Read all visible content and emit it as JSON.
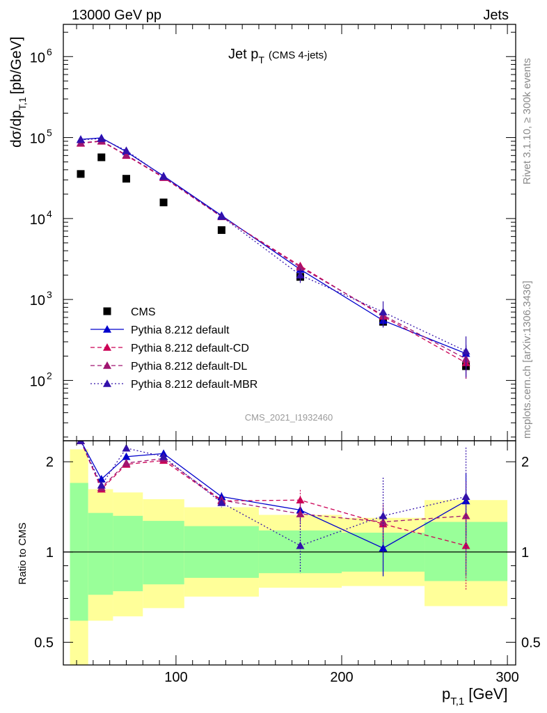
{
  "header": {
    "left": "13000 GeV pp",
    "right": "Jets"
  },
  "side_text": {
    "rivet": "Rivet 3.1.10, ≥ 300k events",
    "mcplots": "mcplots.cern.ch [arXiv:1306.3436]"
  },
  "chart_data": [
    {
      "type": "scatter",
      "panel": "main",
      "title_main": "Jet p",
      "title_sub": "T",
      "title_note": "(CMS 4-jets)",
      "watermark": "CMS_2021_I1932460",
      "yscale": "log",
      "xlim": [
        32,
        305
      ],
      "ylim": [
        18,
        2500000
      ],
      "ylabel_main": "dσ/dp",
      "ylabel_sub": "T,1",
      "ylabel_unit": "[pb/GeV]",
      "ytick_labels": [
        {
          "value": 100,
          "base": "10",
          "exp": "2"
        },
        {
          "value": 1000,
          "base": "10",
          "exp": "3"
        },
        {
          "value": 10000,
          "base": "10",
          "exp": "4"
        },
        {
          "value": 100000,
          "base": "10",
          "exp": "5"
        },
        {
          "value": 1000000,
          "base": "10",
          "exp": "6"
        }
      ],
      "legend_position": "bottom-left",
      "x": [
        42.5,
        55,
        70,
        92.5,
        127.5,
        175,
        225,
        275
      ],
      "series": [
        {
          "name": "CMS",
          "color": "#000000",
          "marker": "square",
          "line": "none",
          "values": [
            35500,
            57000,
            31000,
            15800,
            7200,
            1900,
            530,
            150
          ],
          "errors": [
            0,
            0,
            0,
            0,
            0,
            0,
            0,
            0
          ]
        },
        {
          "name": "Pythia 8.212 default",
          "color": "#0000cc",
          "marker": "triangle",
          "line": "solid",
          "values": [
            95000,
            99000,
            67000,
            33500,
            10900,
            2350,
            550,
            215
          ],
          "errors": [
            0,
            0,
            0,
            0,
            0,
            250,
            90,
            60
          ]
        },
        {
          "name": "Pythia 8.212 default-CD",
          "color": "#cc0055",
          "marker": "triangle",
          "line": "dashed",
          "values": [
            85000,
            90000,
            60000,
            32000,
            10500,
            2600,
            620,
            165
          ],
          "errors": [
            0,
            0,
            0,
            0,
            0,
            250,
            80,
            60
          ]
        },
        {
          "name": "Pythia 8.212 default-DL",
          "color": "#a01570",
          "marker": "triangle",
          "line": "dashed",
          "values": [
            86000,
            91000,
            61000,
            32500,
            10600,
            2500,
            640,
            185
          ],
          "errors": [
            0,
            0,
            0,
            0,
            0,
            250,
            100,
            80
          ]
        },
        {
          "name": "Pythia 8.212 default-MBR",
          "color": "#3311aa",
          "marker": "triangle",
          "line": "dotted",
          "values": [
            94000,
            97000,
            69000,
            33000,
            10600,
            2000,
            700,
            230
          ],
          "errors": [
            0,
            0,
            0,
            0,
            0,
            400,
            250,
            120
          ]
        }
      ]
    },
    {
      "type": "line",
      "panel": "ratio",
      "yscale": "log",
      "xlim": [
        32,
        305
      ],
      "ylim": [
        0.42,
        2.35
      ],
      "ylabel": "Ratio to CMS",
      "xlabel_main": "p",
      "xlabel_sub": "T,1",
      "xlabel_unit": "[GeV]",
      "x_tick_labels": [
        {
          "value": 100,
          "label": "100"
        },
        {
          "value": 200,
          "label": "200"
        },
        {
          "value": 300,
          "label": "300"
        }
      ],
      "y_tick_labels": [
        {
          "value": 0.5,
          "label": "0.5"
        },
        {
          "value": 1,
          "label": "1"
        },
        {
          "value": 2,
          "label": "2"
        }
      ],
      "bands": [
        {
          "x0": 36,
          "x1": 47,
          "green": [
            0.59,
            1.7
          ],
          "yellow": [
            0.42,
            2.2
          ]
        },
        {
          "x0": 47,
          "x1": 62,
          "green": [
            0.72,
            1.35
          ],
          "yellow": [
            0.59,
            1.62
          ]
        },
        {
          "x0": 62,
          "x1": 80,
          "green": [
            0.74,
            1.32
          ],
          "yellow": [
            0.61,
            1.58
          ]
        },
        {
          "x0": 80,
          "x1": 105,
          "green": [
            0.78,
            1.27
          ],
          "yellow": [
            0.65,
            1.5
          ]
        },
        {
          "x0": 105,
          "x1": 150,
          "green": [
            0.82,
            1.22
          ],
          "yellow": [
            0.71,
            1.41
          ]
        },
        {
          "x0": 150,
          "x1": 200,
          "green": [
            0.85,
            1.18
          ],
          "yellow": [
            0.76,
            1.33
          ]
        },
        {
          "x0": 200,
          "x1": 250,
          "green": [
            0.86,
            1.16
          ],
          "yellow": [
            0.77,
            1.3
          ]
        },
        {
          "x0": 250,
          "x1": 300,
          "green": [
            0.8,
            1.26
          ],
          "yellow": [
            0.66,
            1.49
          ]
        }
      ],
      "x": [
        42.5,
        55,
        70,
        92.5,
        127.5,
        175,
        225,
        275
      ],
      "series": [
        {
          "name": "Pythia 8.212 default",
          "color": "#0000cc",
          "line": "solid",
          "values": [
            2.35,
            1.75,
            2.08,
            2.13,
            1.53,
            1.38,
            1.03,
            1.48
          ],
          "errors": [
            0,
            0.05,
            0,
            0.04,
            0.05,
            0.12,
            0.2,
            0.35
          ]
        },
        {
          "name": "Pythia 8.212 default-CD",
          "color": "#cc0055",
          "line": "dashed",
          "values": [
            2.35,
            1.62,
            1.96,
            2.02,
            1.48,
            1.49,
            1.24,
            1.05
          ],
          "errors": [
            0,
            0.05,
            0,
            0.04,
            0.05,
            0.12,
            0.15,
            0.3
          ]
        },
        {
          "name": "Pythia 8.212 default-DL",
          "color": "#a01570",
          "line": "dashed",
          "values": [
            2.35,
            1.64,
            1.98,
            2.05,
            1.49,
            1.34,
            1.26,
            1.32
          ],
          "errors": [
            0,
            0.05,
            0,
            0.04,
            0.05,
            0.12,
            0.18,
            0.4
          ]
        },
        {
          "name": "Pythia 8.212 default-MBR",
          "color": "#3311aa",
          "line": "dotted",
          "values": [
            2.35,
            1.67,
            2.22,
            2.08,
            1.46,
            1.05,
            1.32,
            1.53
          ],
          "errors": [
            0,
            0.05,
            0,
            0.04,
            0.05,
            0.2,
            0.45,
            0.7
          ]
        }
      ]
    }
  ]
}
